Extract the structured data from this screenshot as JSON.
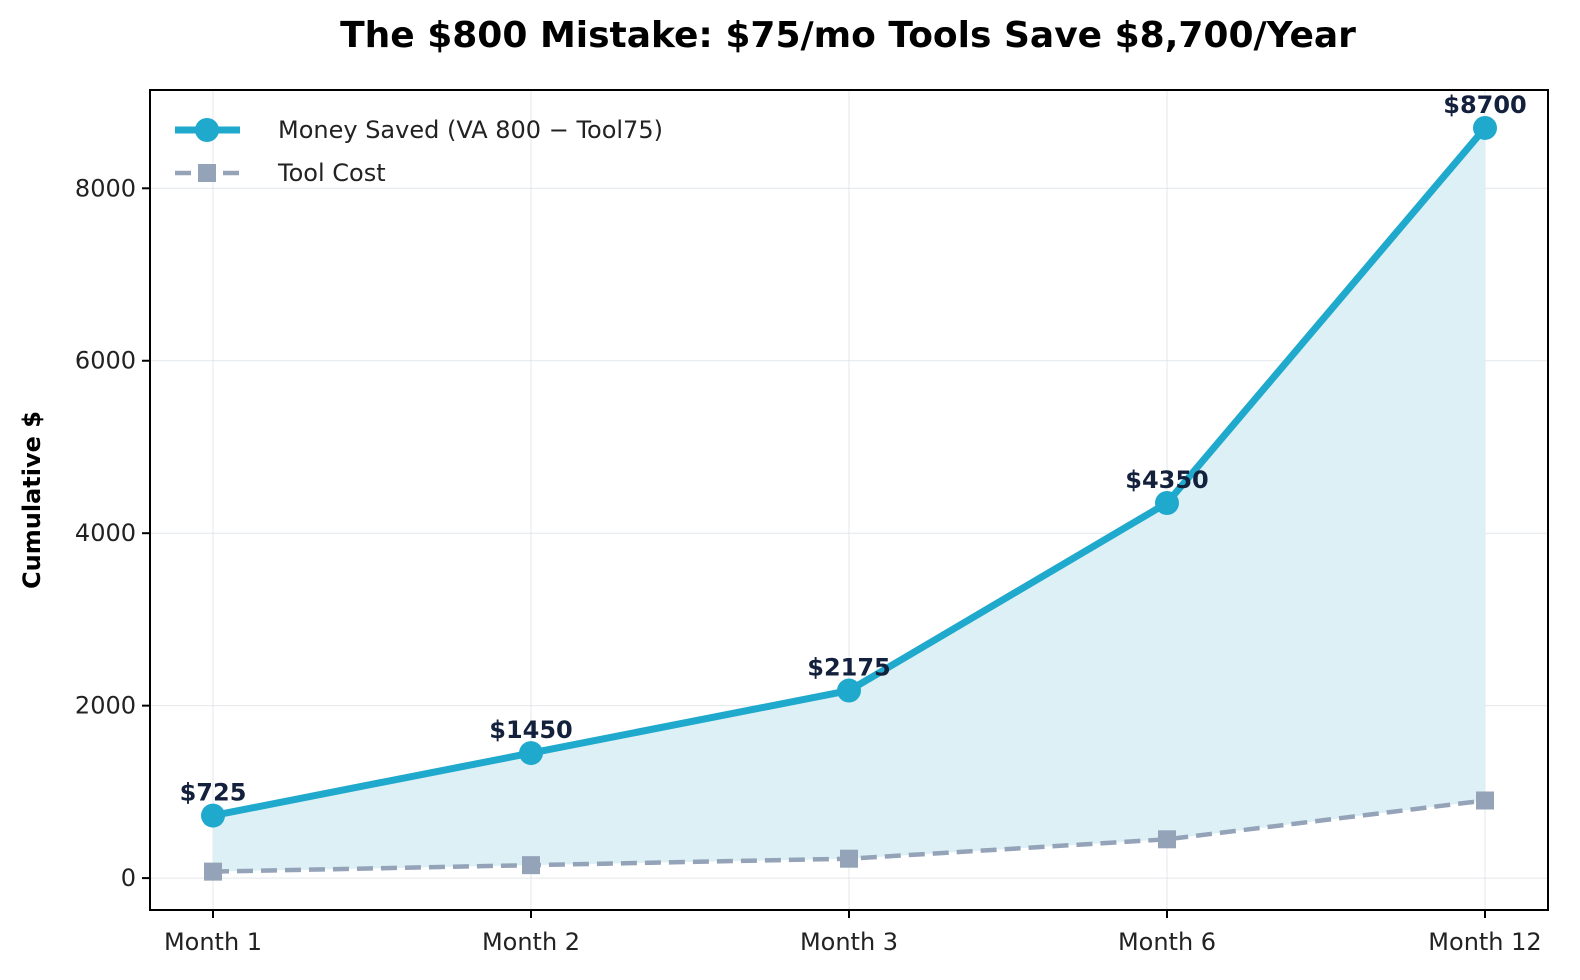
{
  "chart_data": {
    "type": "line",
    "title": "The $800 Mistake: $75/mo Tools Save $8,700/Year",
    "xlabel": "",
    "ylabel": "Cumulative $",
    "categories": [
      "Month 1",
      "Month 2",
      "Month 3",
      "Month 6",
      "Month 12"
    ],
    "series": [
      {
        "name": "Money Saved (VA $800 - Tool $75)",
        "legend_text": "Money Saved (VA 800 − Tool75)",
        "values": [
          725,
          1450,
          2175,
          4350,
          8700
        ],
        "color": "#1fa9cc",
        "marker": "circle",
        "line_style": "solid",
        "fill_to": "Tool Cost",
        "fill_color": "#dcf0f6",
        "data_labels": [
          "$725",
          "$1450",
          "$2175",
          "$4350",
          "$8700"
        ]
      },
      {
        "name": "Tool Cost",
        "legend_text": "Tool Cost",
        "values": [
          75,
          150,
          225,
          450,
          900
        ],
        "color": "#94a3b8",
        "marker": "square",
        "line_style": "dashed"
      }
    ],
    "ylim": [
      -370,
      9140
    ],
    "yticks": [
      0,
      2000,
      4000,
      6000,
      8000
    ],
    "grid": true,
    "legend_position": "top-left"
  }
}
